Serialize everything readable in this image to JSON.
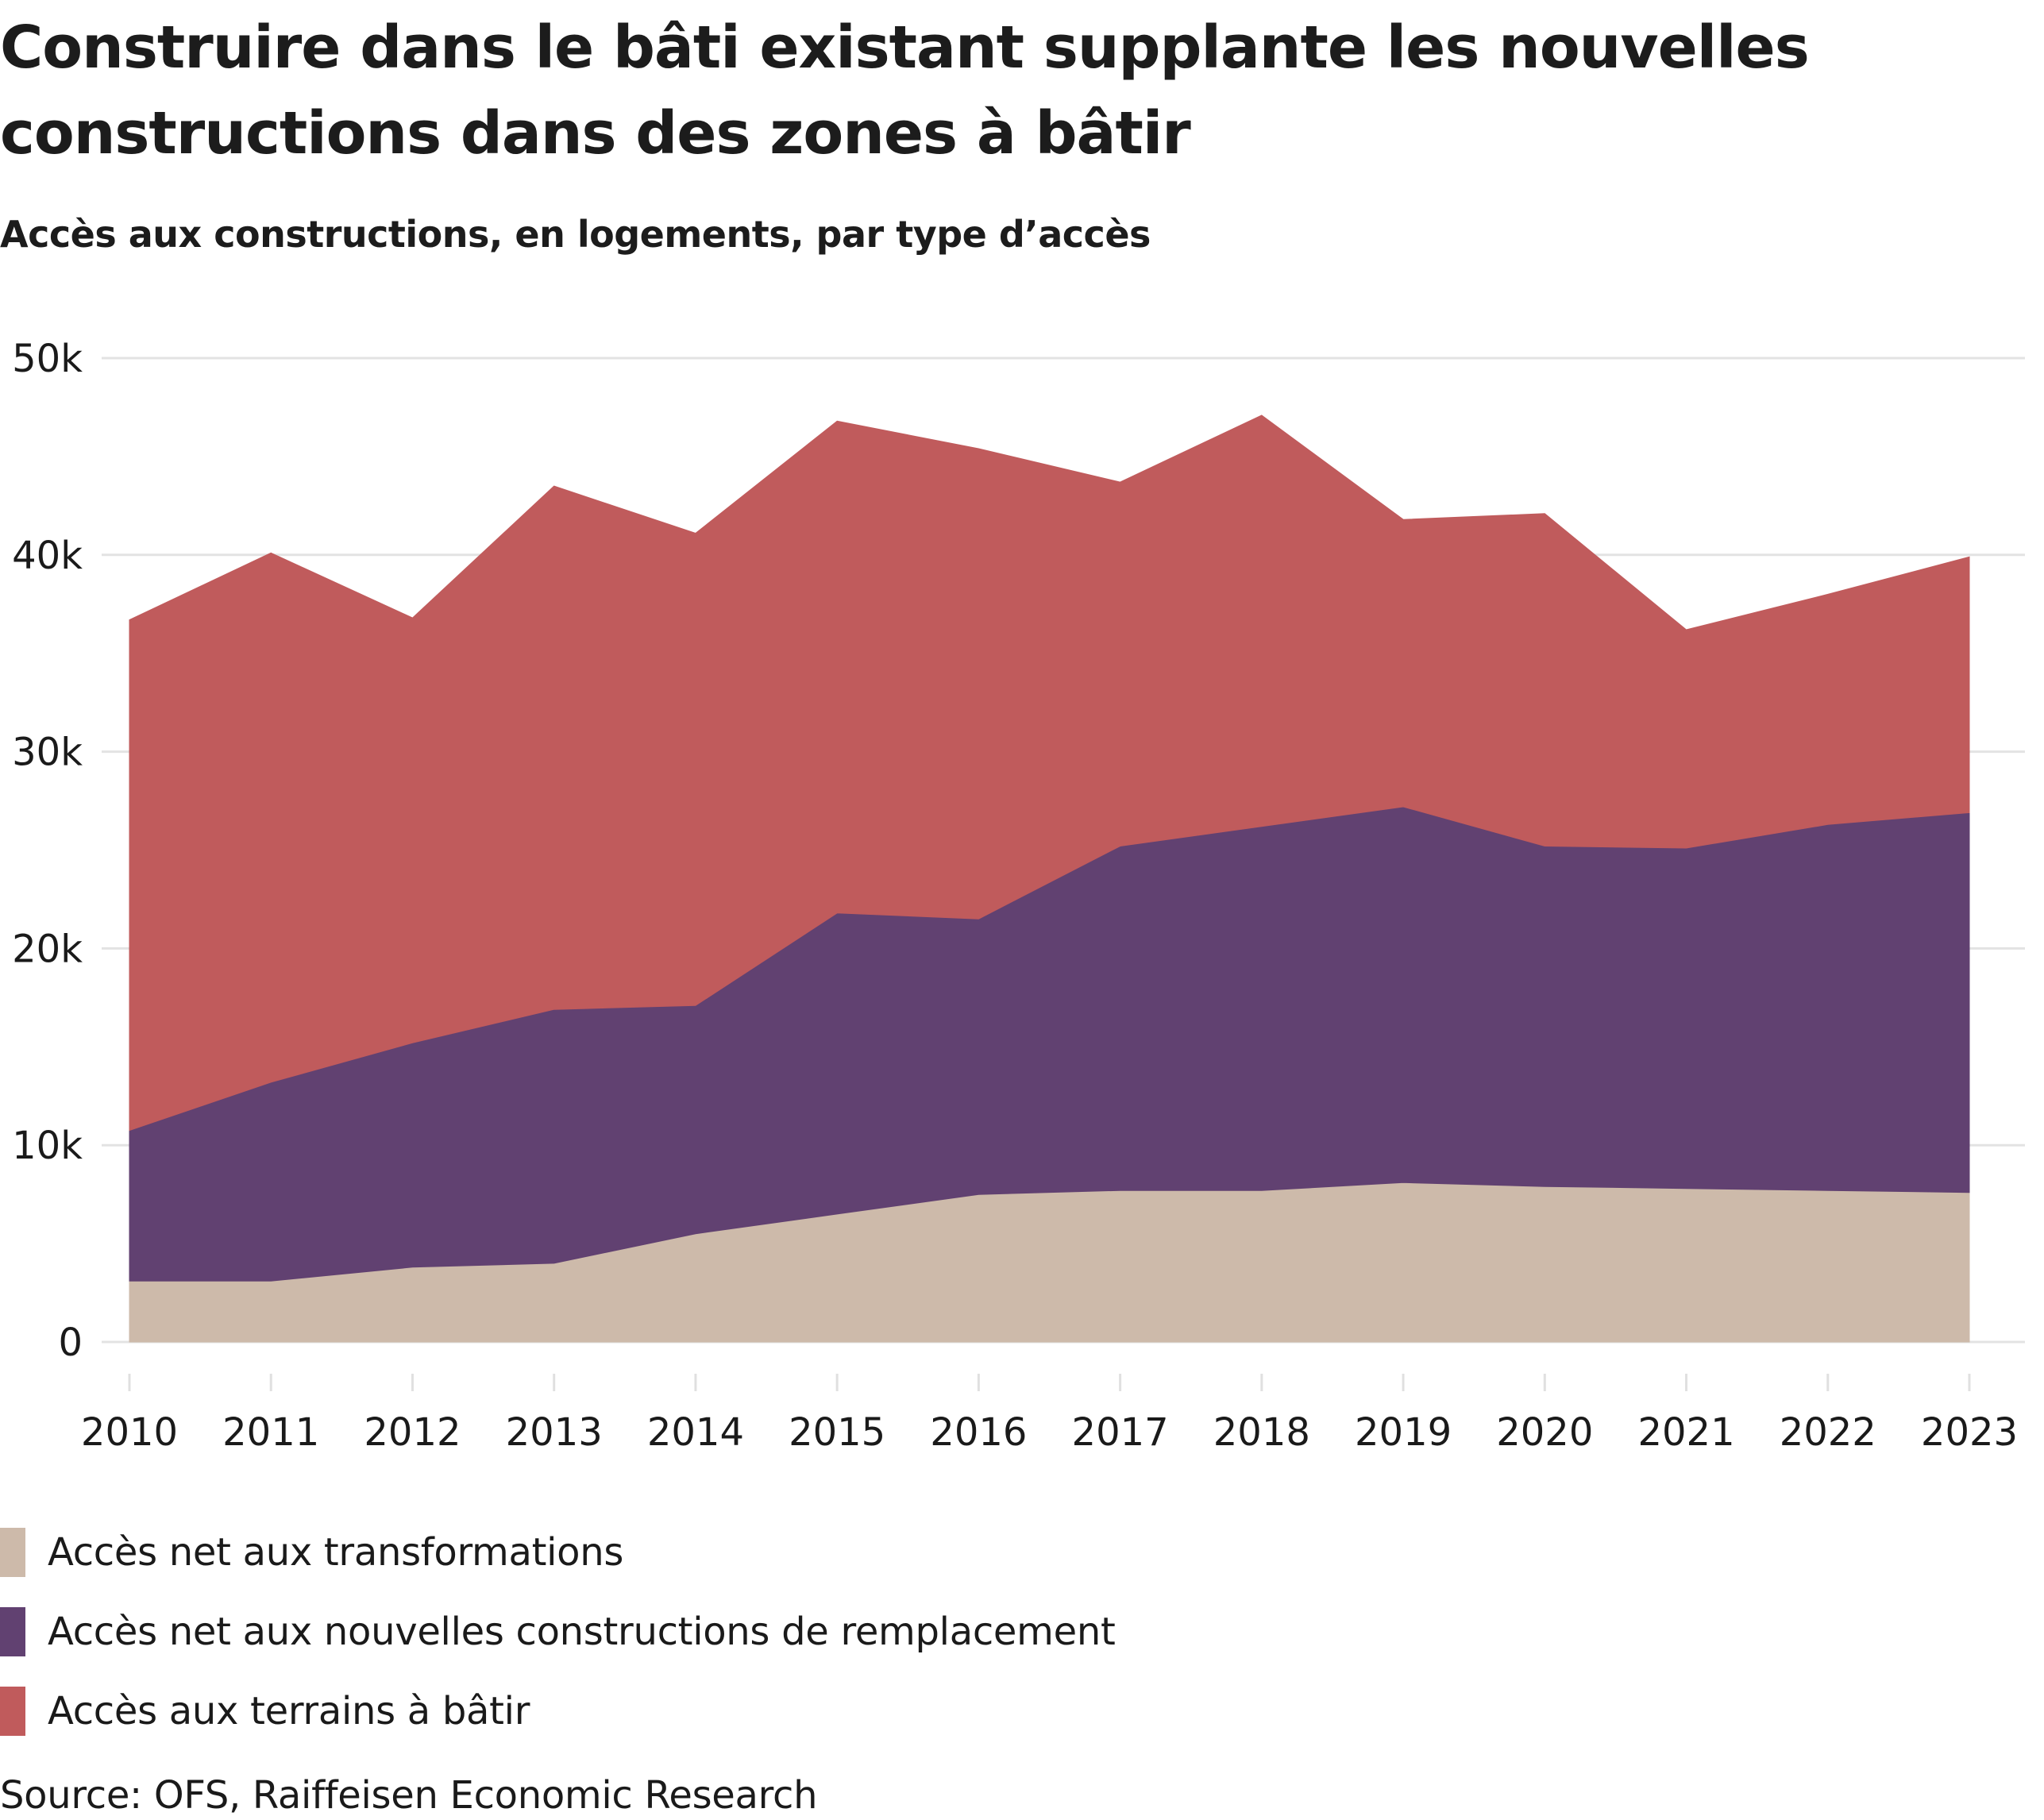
{
  "header": {
    "title": "Construire dans le bâti existant supplante les nouvelles constructions dans des zones à bâtir",
    "subtitle": "Accès aux constructions, en logements, par type d’accès"
  },
  "legend": [
    {
      "label": "Accès net aux transformations",
      "color": "#cdbaaa"
    },
    {
      "label": "Accès net aux nouvelles constructions de remplacement",
      "color": "#614171"
    },
    {
      "label": "Accès aux terrains à bâtir",
      "color": "#c05b5c"
    }
  ],
  "source": "Source: OFS, Raiffeisen Economic Research",
  "chart_data": {
    "type": "area",
    "stacked": true,
    "title": "Construire dans le bâti existant supplante les nouvelles constructions dans des zones à bâtir",
    "subtitle": "Accès aux constructions, en logements, par type d’accès",
    "xlabel": "",
    "ylabel": "",
    "x": [
      2010,
      2011,
      2012,
      2013,
      2014,
      2015,
      2016,
      2017,
      2018,
      2019,
      2020,
      2021,
      2022,
      2023
    ],
    "x_tick_labels": [
      "2010",
      "2011",
      "2012",
      "2013",
      "2014",
      "2015",
      "2016",
      "2017",
      "2018",
      "2019",
      "2020",
      "2021",
      "2022",
      "2023"
    ],
    "ylim": [
      0,
      50000
    ],
    "y_ticks": [
      0,
      10000,
      20000,
      30000,
      40000,
      50000
    ],
    "y_tick_labels": [
      "0",
      "10k",
      "20k",
      "30k",
      "40k",
      "50k"
    ],
    "grid": true,
    "legend_position": "bottom-left",
    "series": [
      {
        "name": "Accès net aux transformations",
        "color": "#cdbaaa",
        "values": [
          3100,
          3100,
          3800,
          4000,
          5500,
          6500,
          7500,
          7700,
          7700,
          8100,
          7900,
          7800,
          7700,
          7600
        ]
      },
      {
        "name": "Accès net aux nouvelles constructions de remplacement",
        "color": "#614171",
        "values": [
          7650,
          10100,
          11400,
          12900,
          11600,
          15300,
          14000,
          17500,
          18500,
          19100,
          17300,
          17300,
          18600,
          19300
        ]
      },
      {
        "name": "Accès aux terrains à bâtir",
        "color": "#c05b5c",
        "values": [
          25950,
          26900,
          21600,
          26600,
          24000,
          25000,
          23900,
          18500,
          20900,
          14600,
          16900,
          11100,
          11700,
          13000
        ]
      }
    ]
  }
}
